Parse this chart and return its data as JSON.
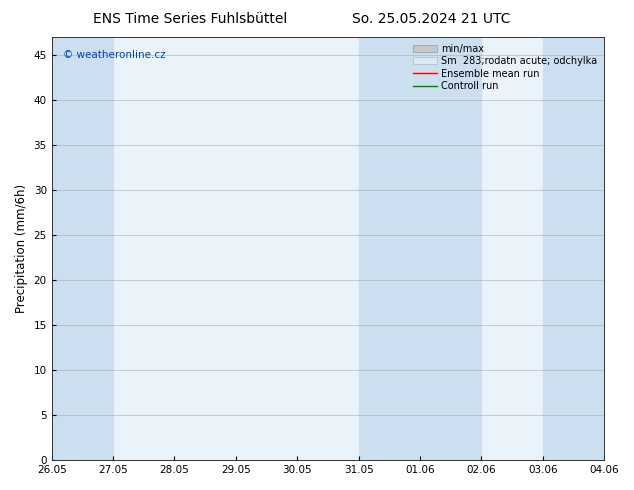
{
  "title_left": "ENS Time Series Fuhlsbüttel",
  "title_right": "So. 25.05.2024 21 UTC",
  "ylabel": "Precipitation (mm/6h)",
  "xlabel_ticks": [
    "26.05",
    "27.05",
    "28.05",
    "29.05",
    "30.05",
    "31.05",
    "01.06",
    "02.06",
    "03.06",
    "04.06"
  ],
  "xlim": [
    0,
    9
  ],
  "ylim": [
    0,
    47
  ],
  "yticks": [
    0,
    5,
    10,
    15,
    20,
    25,
    30,
    35,
    40,
    45
  ],
  "watermark": "© weatheronline.cz",
  "legend_entries": [
    {
      "label": "min/max",
      "color": "#c8c8c8",
      "type": "fill_between"
    },
    {
      "label": "Sm  283;rodatn acute; odchylka",
      "color": "#dce9f5",
      "type": "fill_between"
    },
    {
      "label": "Ensemble mean run",
      "color": "red",
      "type": "line"
    },
    {
      "label": "Controll run",
      "color": "green",
      "type": "line"
    }
  ],
  "bg_color": "#ffffff",
  "plot_bg_color": "#eaf2fa",
  "shaded_regions": [
    {
      "x_start": 0.0,
      "x_end": 1.0,
      "color": "#ccdff0"
    },
    {
      "x_start": 5.0,
      "x_end": 7.0,
      "color": "#ccdff0"
    },
    {
      "x_start": 8.0,
      "x_end": 9.0,
      "color": "#ccdff0"
    }
  ],
  "title_fontsize": 10,
  "axis_fontsize": 8.5,
  "tick_fontsize": 7.5,
  "legend_fontsize": 7
}
